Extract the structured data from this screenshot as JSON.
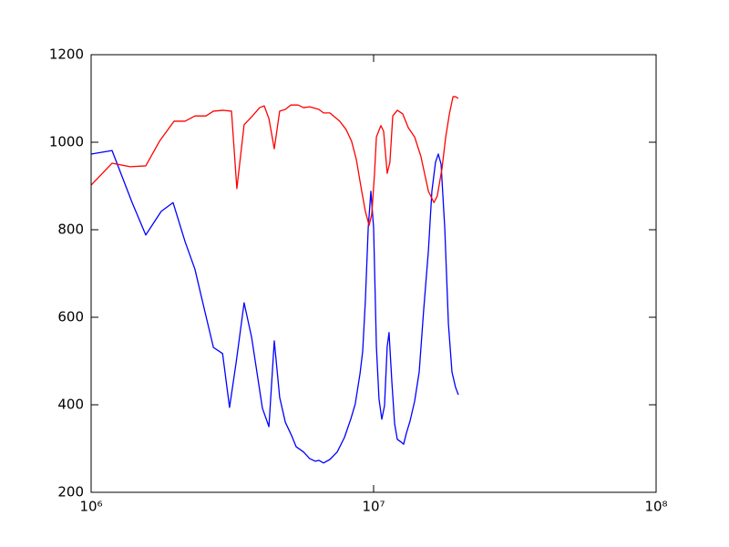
{
  "chart_data": {
    "type": "line",
    "xscale": "log",
    "xlim": [
      1000000,
      100000000
    ],
    "xticks": [
      {
        "value": 1000000,
        "label": "10⁶"
      },
      {
        "value": 10000000,
        "label": "10⁷"
      },
      {
        "value": 100000000,
        "label": "10⁸"
      }
    ],
    "ylim": [
      200,
      1200
    ],
    "yticks": [
      200,
      400,
      600,
      800,
      1000,
      1200
    ],
    "grid": false,
    "series": [
      {
        "color": "#0000ff",
        "x": [
          1000000,
          1186000,
          1397000,
          1561000,
          1770000,
          1950000,
          2150000,
          2330000,
          2530000,
          2710000,
          2920000,
          3090000,
          3260000,
          3480000,
          3700000,
          4040000,
          4260000,
          4450000,
          4650000,
          4870000,
          5130000,
          5320000,
          5650000,
          5940000,
          6220000,
          6400000,
          6650000,
          7000000,
          7430000,
          7880000,
          8300000,
          8610000,
          8950000,
          9150000,
          9350000,
          9570000,
          9780000,
          10000000,
          10230000,
          10450000,
          10690000,
          10930000,
          11170000,
          11340000,
          11610000,
          11870000,
          12130000,
          12500000,
          12770000,
          13060000,
          13460000,
          13970000,
          14500000,
          15040000,
          15630000,
          16080000,
          16560000,
          16940000,
          17330000,
          17860000,
          18400000,
          18940000,
          19500000,
          19950000
        ],
        "values": [
          973,
          981,
          862,
          788,
          842,
          862,
          773,
          710,
          612,
          531,
          517,
          394,
          496,
          633,
          554,
          392,
          350,
          546,
          417,
          360,
          329,
          304,
          292,
          277,
          271,
          273,
          267,
          275,
          292,
          325,
          367,
          402,
          471,
          523,
          638,
          804,
          888,
          804,
          533,
          413,
          367,
          398,
          533,
          565,
          450,
          356,
          321,
          315,
          310,
          335,
          363,
          408,
          475,
          617,
          752,
          888,
          954,
          973,
          950,
          804,
          585,
          475,
          440,
          423
        ]
      },
      {
        "color": "#ff0000",
        "x": [
          1000000,
          1186000,
          1376000,
          1561000,
          1745000,
          1965000,
          2150000,
          2330000,
          2550000,
          2710000,
          2940000,
          3140000,
          3280000,
          3480000,
          3700000,
          3950000,
          4100000,
          4260000,
          4450000,
          4650000,
          4870000,
          5090000,
          5400000,
          5650000,
          5940000,
          6400000,
          6650000,
          7000000,
          7270000,
          7590000,
          7990000,
          8360000,
          8690000,
          9020000,
          9350000,
          9640000,
          9850000,
          10075000,
          10230000,
          10610000,
          10850000,
          11170000,
          11420000,
          11690000,
          12130000,
          12670000,
          13270000,
          13970000,
          14710000,
          15630000,
          16350000,
          16800000,
          17460000,
          18000000,
          18550000,
          19100000,
          19500000,
          19950000
        ],
        "values": [
          902,
          952,
          944,
          946,
          1002,
          1048,
          1048,
          1060,
          1060,
          1071,
          1073,
          1071,
          894,
          1040,
          1058,
          1079,
          1083,
          1054,
          985,
          1071,
          1075,
          1085,
          1085,
          1079,
          1081,
          1075,
          1067,
          1067,
          1058,
          1048,
          1029,
          1002,
          960,
          898,
          842,
          810,
          835,
          929,
          1012,
          1038,
          1025,
          929,
          954,
          1060,
          1073,
          1065,
          1033,
          1012,
          967,
          888,
          862,
          877,
          940,
          1012,
          1065,
          1104,
          1104,
          1100
        ]
      }
    ]
  }
}
